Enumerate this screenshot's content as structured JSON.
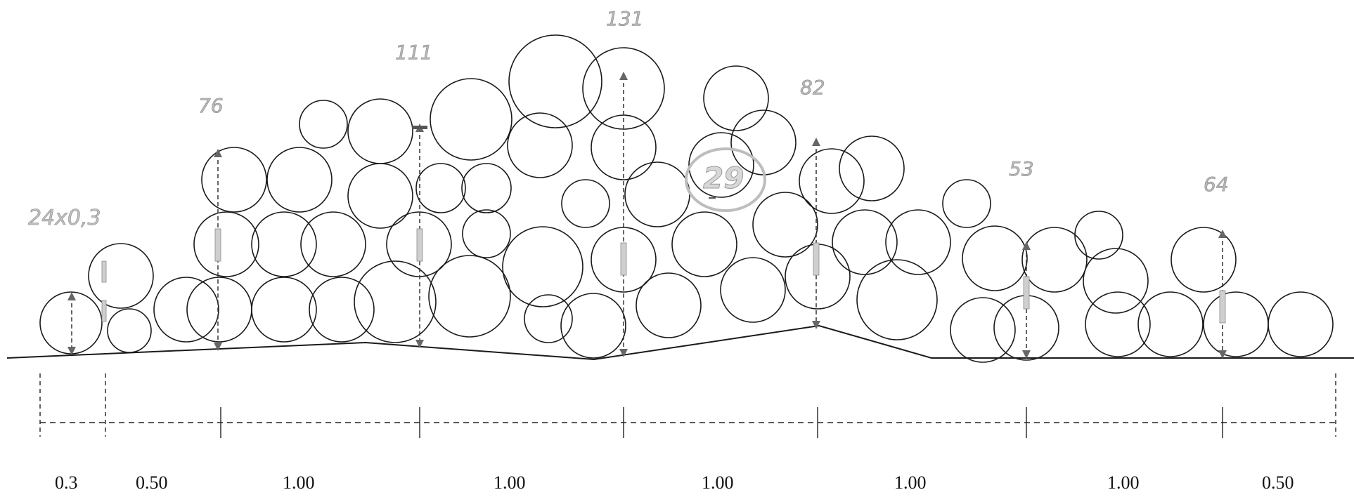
{
  "diagram": {
    "stack_label": "24x0,3",
    "heights": [
      {
        "label": "76"
      },
      {
        "label": "111"
      },
      {
        "label": "131"
      },
      {
        "label": "82"
      },
      {
        "label": "53"
      },
      {
        "label": "64"
      }
    ],
    "center_label": "29",
    "segments": [
      "0.3",
      "0.50",
      "1.00",
      "1.00",
      "1.00",
      "1.00",
      "1.00",
      "0.50"
    ],
    "colors": {
      "stroke": "#1a1a1a",
      "label_gray": "#b8b8b8",
      "marker": "#666666"
    }
  }
}
